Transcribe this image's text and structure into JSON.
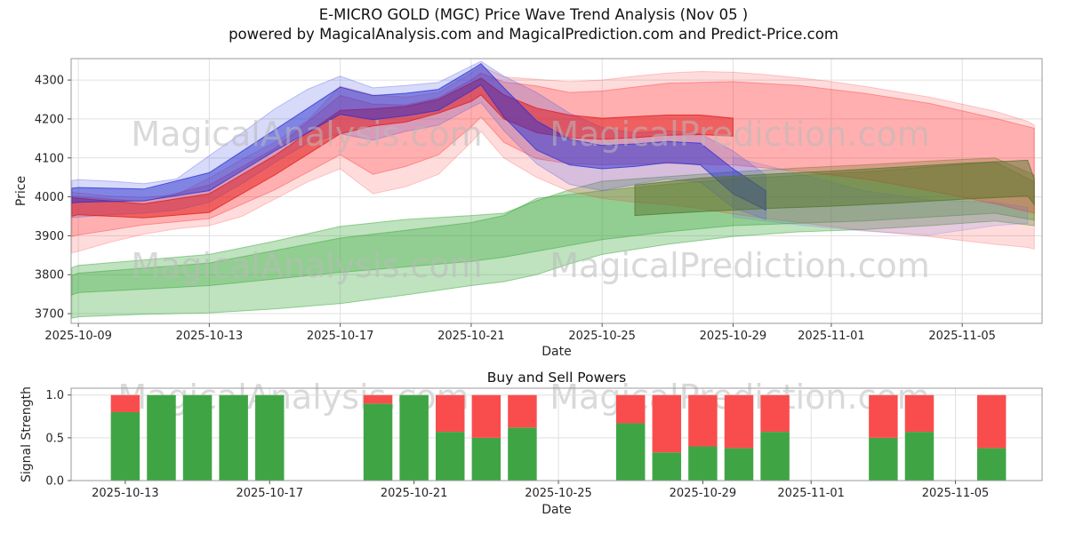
{
  "title": {
    "line1": "E-MICRO GOLD (MGC) Price Wave Trend Analysis (Nov 05 )",
    "line2": "powered by MagicalAnalysis.com and MagicalPrediction.com and Predict-Price.com"
  },
  "watermark": {
    "analysis": "MagicalAnalysis.com",
    "prediction": "MagicalPrediction.com"
  },
  "colors": {
    "grid": "#e0e0e0",
    "spine": "#999999",
    "tick": "#555555",
    "text": "#262626",
    "bar_green": "#3fa544",
    "bar_red": "#f94d4d"
  },
  "chart_data": [
    {
      "type": "area",
      "name": "price-wave-chart",
      "title": "",
      "xlabel": "Date",
      "ylabel": "Price",
      "xlim_days": [
        -0.22,
        29.44
      ],
      "ylim": [
        3675,
        4355
      ],
      "grid": true,
      "y_ticks": [
        3700,
        3800,
        3900,
        4000,
        4100,
        4200,
        4300
      ],
      "x_ticks": [
        {
          "day": 0,
          "label": "2025-10-09"
        },
        {
          "day": 4,
          "label": "2025-10-13"
        },
        {
          "day": 8,
          "label": "2025-10-17"
        },
        {
          "day": 12,
          "label": "2025-10-21"
        },
        {
          "day": 16,
          "label": "2025-10-25"
        },
        {
          "day": 20,
          "label": "2025-10-29"
        },
        {
          "day": 23,
          "label": "2025-11-01"
        },
        {
          "day": 27,
          "label": "2025-11-05"
        }
      ],
      "bands": [
        {
          "name": "green-outer",
          "color": "#2ca02c",
          "alpha": 0.3,
          "x": [
            -0.2,
            0,
            2,
            4,
            6,
            8,
            10,
            12,
            13,
            14,
            15,
            16,
            18,
            20,
            22,
            24,
            26,
            28,
            29.2
          ],
          "lower": [
            3688,
            3692,
            3698,
            3702,
            3712,
            3726,
            3748,
            3772,
            3782,
            3800,
            3828,
            3852,
            3878,
            3898,
            3910,
            3916,
            3926,
            3938,
            3926
          ],
          "upper": [
            3818,
            3824,
            3838,
            3852,
            3886,
            3924,
            3942,
            3952,
            3958,
            3990,
            4018,
            4040,
            4052,
            4064,
            4074,
            4082,
            4092,
            4100,
            4056
          ]
        },
        {
          "name": "green-inner",
          "color": "#2ca02c",
          "alpha": 0.3,
          "x": [
            -0.2,
            0,
            4,
            8,
            12,
            13,
            14,
            16,
            18,
            20,
            24,
            28,
            29.2
          ],
          "lower": [
            3748,
            3754,
            3772,
            3806,
            3834,
            3845,
            3860,
            3890,
            3910,
            3926,
            3938,
            3958,
            3940
          ],
          "upper": [
            3798,
            3804,
            3830,
            3894,
            3934,
            3952,
            3996,
            4016,
            4032,
            4046,
            4064,
            4090,
            4038
          ]
        },
        {
          "name": "red-outer",
          "color": "#ff2828",
          "alpha": 0.16,
          "x": [
            -0.2,
            0,
            1,
            2,
            3,
            4,
            5,
            6,
            7,
            8,
            9,
            10,
            11,
            12,
            12.3,
            13,
            14,
            15,
            16,
            17,
            18,
            19,
            20,
            21,
            22,
            23,
            24,
            25,
            26,
            27,
            28,
            29,
            29.2
          ],
          "lower": [
            3856,
            3860,
            3884,
            3904,
            3918,
            3926,
            3950,
            3994,
            4038,
            4072,
            4008,
            4026,
            4058,
            4140,
            4168,
            4100,
            4050,
            4014,
            3996,
            3986,
            3980,
            3970,
            3956,
            3944,
            3934,
            3924,
            3914,
            3906,
            3898,
            3888,
            3878,
            3870,
            3866
          ],
          "upper": [
            4012,
            4010,
            4002,
            3998,
            4006,
            4048,
            4096,
            4140,
            4196,
            4284,
            4262,
            4256,
            4268,
            4318,
            4336,
            4308,
            4302,
            4296,
            4300,
            4310,
            4318,
            4322,
            4320,
            4314,
            4306,
            4296,
            4284,
            4270,
            4256,
            4238,
            4220,
            4194,
            4184
          ]
        },
        {
          "name": "red-mid",
          "color": "#ff2828",
          "alpha": 0.25,
          "x": [
            -0.2,
            0,
            2,
            4,
            6,
            8,
            9,
            10,
            11,
            12,
            12.3,
            13,
            14,
            15,
            16,
            18,
            20,
            22,
            24,
            26,
            28,
            29.2
          ],
          "lower": [
            3898,
            3902,
            3928,
            3944,
            4018,
            4108,
            4058,
            4078,
            4108,
            4180,
            4205,
            4140,
            4098,
            4085,
            4082,
            4086,
            4082,
            4066,
            4046,
            4016,
            3982,
            3958
          ],
          "upper": [
            4002,
            4000,
            3988,
            4030,
            4124,
            4260,
            4238,
            4236,
            4254,
            4300,
            4318,
            4295,
            4285,
            4268,
            4272,
            4292,
            4296,
            4286,
            4266,
            4240,
            4202,
            4176
          ]
        },
        {
          "name": "blue-outer",
          "color": "#4a55e5",
          "alpha": 0.22,
          "x": [
            -0.2,
            0,
            1,
            2,
            3,
            4,
            5,
            6,
            7,
            8,
            9,
            10,
            11,
            12,
            12.3,
            13,
            14,
            15,
            16,
            17,
            18,
            19,
            20,
            21
          ],
          "lower": [
            3946,
            3948,
            3954,
            3958,
            3966,
            3986,
            4034,
            4088,
            4138,
            4162,
            4146,
            4168,
            4184,
            4230,
            4242,
            4170,
            4085,
            4032,
            4016,
            4032,
            4046,
            4038,
            3972,
            3942
          ],
          "upper": [
            4042,
            4044,
            4040,
            4034,
            4046,
            4106,
            4164,
            4226,
            4276,
            4310,
            4280,
            4286,
            4294,
            4336,
            4348,
            4310,
            4268,
            4215,
            4178,
            4164,
            4170,
            4162,
            4118,
            4056
          ]
        },
        {
          "name": "blue-faint-tail",
          "color": "#5868e8",
          "alpha": 0.15,
          "x": [
            20,
            22,
            24,
            26,
            28,
            29
          ],
          "lower": [
            3948,
            3928,
            3912,
            3902,
            3926,
            3932
          ],
          "upper": [
            4102,
            4060,
            4016,
            3992,
            3986,
            3972
          ]
        },
        {
          "name": "red-core",
          "color": "#e01414",
          "alpha": 0.5,
          "x": [
            -0.2,
            0,
            2,
            4,
            6,
            8,
            9,
            10,
            11,
            12,
            12.3,
            13,
            14,
            15,
            16,
            17,
            18,
            19,
            20
          ],
          "lower": [
            3950,
            3954,
            3946,
            3960,
            4056,
            4162,
            4182,
            4192,
            4215,
            4245,
            4262,
            4200,
            4165,
            4152,
            4148,
            4152,
            4158,
            4160,
            4156
          ],
          "upper": [
            3998,
            3996,
            3982,
            4008,
            4106,
            4222,
            4226,
            4232,
            4250,
            4292,
            4305,
            4262,
            4228,
            4210,
            4202,
            4206,
            4210,
            4210,
            4202
          ]
        },
        {
          "name": "blue-core",
          "color": "#2a2fd0",
          "alpha": 0.5,
          "x": [
            -0.2,
            0,
            2,
            4,
            6,
            8,
            9,
            10,
            11,
            12,
            12.3,
            13,
            14,
            15,
            16,
            17,
            18,
            19,
            20,
            21
          ],
          "lower": [
            3984,
            3986,
            3990,
            4016,
            4118,
            4212,
            4198,
            4208,
            4222,
            4272,
            4288,
            4205,
            4120,
            4082,
            4072,
            4078,
            4088,
            4082,
            4008,
            3966
          ],
          "upper": [
            4022,
            4024,
            4020,
            4062,
            4172,
            4282,
            4260,
            4266,
            4276,
            4326,
            4342,
            4280,
            4195,
            4148,
            4132,
            4136,
            4142,
            4138,
            4072,
            4016
          ]
        },
        {
          "name": "olive-overlap",
          "color": "#55742c",
          "alpha": 0.5,
          "x": [
            17,
            19,
            21,
            23,
            25,
            27,
            29,
            29.2
          ],
          "lower": [
            3952,
            3962,
            3970,
            3976,
            3984,
            3994,
            4002,
            3980
          ],
          "upper": [
            4030,
            4048,
            4058,
            4066,
            4076,
            4086,
            4094,
            4046
          ]
        }
      ]
    },
    {
      "type": "bar",
      "name": "buy-sell-chart",
      "title": "Buy and Sell Powers",
      "xlabel": "Date",
      "ylabel": "Signal Strength",
      "xlim_days": [
        2.5,
        29.4
      ],
      "ylim": [
        0,
        1.08
      ],
      "grid": true,
      "y_ticks": [
        0,
        0.5,
        1
      ],
      "y_tick_format": "1f",
      "x_ticks": [
        {
          "day": 4,
          "label": "2025-10-13"
        },
        {
          "day": 8,
          "label": "2025-10-17"
        },
        {
          "day": 12,
          "label": "2025-10-21"
        },
        {
          "day": 16,
          "label": "2025-10-25"
        },
        {
          "day": 20,
          "label": "2025-10-29"
        },
        {
          "day": 23,
          "label": "2025-11-01"
        },
        {
          "day": 27,
          "label": "2025-11-05"
        }
      ],
      "bar_width_days": 0.8,
      "bars": [
        {
          "date": "2025-10-13",
          "day": 4,
          "buy": 0.8,
          "sell": 0.2
        },
        {
          "date": "2025-10-14",
          "day": 5,
          "buy": 1.0,
          "sell": 0.0
        },
        {
          "date": "2025-10-15",
          "day": 6,
          "buy": 1.0,
          "sell": 0.0
        },
        {
          "date": "2025-10-16",
          "day": 7,
          "buy": 1.0,
          "sell": 0.0
        },
        {
          "date": "2025-10-17",
          "day": 8,
          "buy": 1.0,
          "sell": 0.0
        },
        {
          "date": "2025-10-20",
          "day": 11,
          "buy": 0.9,
          "sell": 0.1
        },
        {
          "date": "2025-10-21",
          "day": 12,
          "buy": 1.0,
          "sell": 0.0
        },
        {
          "date": "2025-10-22",
          "day": 13,
          "buy": 0.57,
          "sell": 0.43
        },
        {
          "date": "2025-10-23",
          "day": 14,
          "buy": 0.5,
          "sell": 0.5
        },
        {
          "date": "2025-10-24",
          "day": 15,
          "buy": 0.62,
          "sell": 0.38
        },
        {
          "date": "2025-10-27",
          "day": 18,
          "buy": 0.67,
          "sell": 0.33
        },
        {
          "date": "2025-10-28",
          "day": 19,
          "buy": 0.33,
          "sell": 0.67
        },
        {
          "date": "2025-10-29",
          "day": 20,
          "buy": 0.4,
          "sell": 0.6
        },
        {
          "date": "2025-10-30",
          "day": 21,
          "buy": 0.38,
          "sell": 0.62
        },
        {
          "date": "2025-10-31",
          "day": 22,
          "buy": 0.57,
          "sell": 0.43
        },
        {
          "date": "2025-11-03",
          "day": 25,
          "buy": 0.5,
          "sell": 0.5
        },
        {
          "date": "2025-11-04",
          "day": 26,
          "buy": 0.57,
          "sell": 0.43
        },
        {
          "date": "2025-11-06",
          "day": 28,
          "buy": 0.38,
          "sell": 0.62
        }
      ]
    }
  ]
}
